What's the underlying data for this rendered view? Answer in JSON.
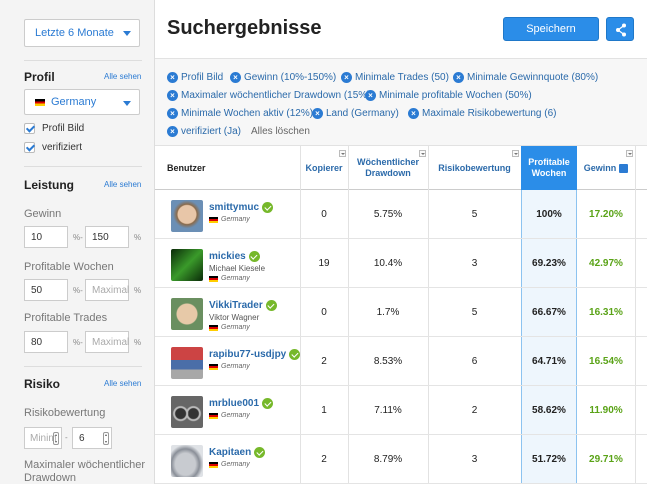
{
  "sidebar": {
    "period": "Letzte 6 Monate",
    "profile": {
      "title": "Profil",
      "see_all": "Alle sehen",
      "country": "Germany",
      "check_picture": "Profil Bild",
      "check_verified": "verifiziert"
    },
    "performance": {
      "title": "Leistung",
      "see_all": "Alle sehen",
      "gain_label": "Gewinn",
      "gain_min": "10",
      "gain_max": "150",
      "unit_range": "%-",
      "unit_pct": "%",
      "weeks_label": "Profitable Wochen",
      "weeks_min": "50",
      "weeks_max_placeholder": "Maximal",
      "trades_label": "Profitable Trades",
      "trades_min": "80",
      "trades_max_placeholder": "Maximal"
    },
    "risk": {
      "title": "Risiko",
      "see_all": "Alle sehen",
      "score_label": "Risikobewertung",
      "score_min_placeholder": "Minim",
      "score_max": "6",
      "drawdown_label_1": "Maximaler wöchentlicher",
      "drawdown_label_2": "Drawdown"
    }
  },
  "header": {
    "title": "Suchergebnisse",
    "save_label": "Speichern",
    "share_icon": "share-icon"
  },
  "filters": {
    "chips": [
      "Profil Bild",
      "Gewinn (10%-150%)",
      "Minimale Trades (50)",
      "Minimale Gewinnquote (80%)",
      "Maximaler wöchentlicher Drawdown (15%)",
      "Minimale profitable Wochen (50%)",
      "Minimale Wochen aktiv (12%)",
      "Land (Germany)",
      "Maximale Risikobewertung (6)",
      "verifiziert (Ja)"
    ],
    "clear_all": "Alles löschen"
  },
  "table": {
    "headers": {
      "user": "Benutzer",
      "copiers": "Kopierer",
      "drawdown_1": "Wöchentlicher",
      "drawdown_2": "Drawdown",
      "risk": "Risikobewertung",
      "weeks_1": "Profitable",
      "weeks_2": "Wochen",
      "gain": "Gewinn"
    },
    "rows": [
      {
        "username": "smittymuc",
        "realname": "",
        "country": "Germany",
        "copiers": "0",
        "drawdown": "5.75%",
        "risk": "5",
        "weeks": "100%",
        "gain": "17.20%"
      },
      {
        "username": "mickies",
        "realname": "Michael Kiesele",
        "country": "Germany",
        "copiers": "19",
        "drawdown": "10.4%",
        "risk": "3",
        "weeks": "69.23%",
        "gain": "42.97%"
      },
      {
        "username": "VikkiTrader",
        "realname": "Viktor Wagner",
        "country": "Germany",
        "copiers": "0",
        "drawdown": "1.7%",
        "risk": "5",
        "weeks": "66.67%",
        "gain": "16.31%"
      },
      {
        "username": "rapibu77-usdjpy",
        "realname": "",
        "country": "Germany",
        "copiers": "2",
        "drawdown": "8.53%",
        "risk": "6",
        "weeks": "64.71%",
        "gain": "16.54%"
      },
      {
        "username": "mrblue001",
        "realname": "",
        "country": "Germany",
        "copiers": "1",
        "drawdown": "7.11%",
        "risk": "2",
        "weeks": "58.62%",
        "gain": "11.90%"
      },
      {
        "username": "Kapitaen",
        "realname": "",
        "country": "Germany",
        "copiers": "2",
        "drawdown": "8.79%",
        "risk": "3",
        "weeks": "51.72%",
        "gain": "29.71%"
      }
    ]
  }
}
